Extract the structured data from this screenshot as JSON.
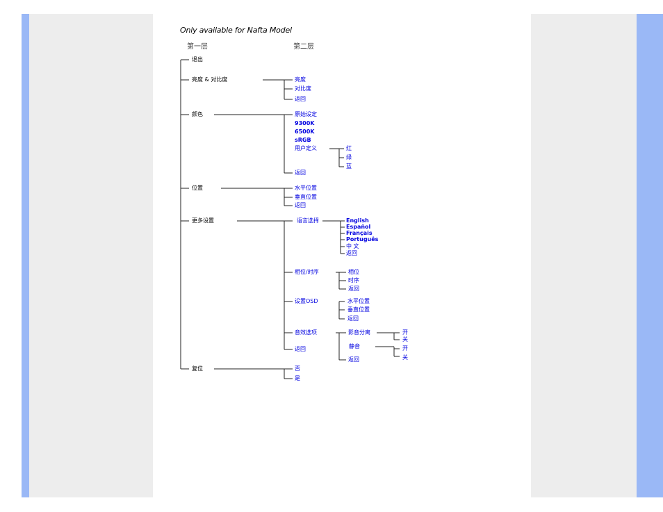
{
  "title": "Only available for Nafta Model",
  "headers": {
    "level1": "第一层",
    "level2": "第二层"
  },
  "level1": {
    "exit": "退出",
    "brightness_contrast": "亮度 & 对比度",
    "color": "颜色",
    "position": "位置",
    "more_settings": "更多设置",
    "reset": "复位"
  },
  "brightness_contrast": [
    "亮度",
    "对比度",
    "返回"
  ],
  "color": [
    "原始设定",
    "9300K",
    "6500K",
    "sRGB",
    "用户定义",
    "返回"
  ],
  "user_define": [
    "红",
    "绿",
    "蓝"
  ],
  "position": [
    "水平位置",
    "垂直位置",
    "返回"
  ],
  "more_settings": {
    "language": "语言选择",
    "phase_clock": "相位/时序",
    "osd_settings": "设置OSD",
    "audio_options": "音效选项",
    "back": "返回"
  },
  "languages": [
    "English",
    "Español",
    "Français",
    "Português",
    "中 文",
    "返回"
  ],
  "phase_clock": [
    "相位",
    "时序",
    "返回"
  ],
  "osd_settings": [
    "水平位置",
    "垂直位置",
    "返回"
  ],
  "audio_options": {
    "audio_split": "影音分离",
    "mute": "静音",
    "back": "返回"
  },
  "on_off": [
    "开",
    "关"
  ],
  "reset": [
    "否",
    "是"
  ]
}
